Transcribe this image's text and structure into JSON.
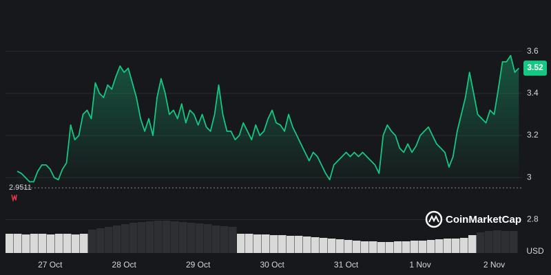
{
  "chart_data": {
    "type": "line",
    "color": "#16c784",
    "categories": [
      null,
      null,
      null,
      null,
      null,
      null,
      null,
      null,
      "27 Oct",
      null,
      null,
      null,
      null,
      null,
      null,
      null,
      null,
      null,
      null,
      null,
      null,
      null,
      null,
      null,
      null,
      null,
      "28 Oct",
      null,
      null,
      null,
      null,
      null,
      null,
      null,
      null,
      null,
      null,
      null,
      null,
      null,
      null,
      null,
      null,
      null,
      "29 Oct",
      null,
      null,
      null,
      null,
      null,
      null,
      null,
      null,
      null,
      null,
      null,
      null,
      null,
      null,
      null,
      null,
      null,
      "30 Oct",
      null,
      null,
      null,
      null,
      null,
      null,
      null,
      null,
      null,
      null,
      null,
      null,
      null,
      null,
      null,
      null,
      null,
      "31 Oct",
      null,
      null,
      null,
      null,
      null,
      null,
      null,
      null,
      null,
      null,
      null,
      null,
      null,
      null,
      null,
      null,
      null,
      "1 Nov",
      null,
      null,
      null,
      null,
      null,
      null,
      null,
      null,
      null,
      null,
      null,
      null,
      null,
      null,
      null,
      null,
      null,
      "2 Nov",
      null,
      null,
      null,
      null,
      null,
      null
    ],
    "series": [
      {
        "values": [
          3.03,
          3.02,
          3.0,
          2.98,
          2.98,
          3.03,
          3.06,
          3.06,
          3.04,
          3.0,
          2.99,
          3.04,
          3.07,
          3.25,
          3.18,
          3.2,
          3.3,
          3.32,
          3.28,
          3.45,
          3.4,
          3.38,
          3.44,
          3.42,
          3.48,
          3.53,
          3.5,
          3.52,
          3.45,
          3.38,
          3.28,
          3.22,
          3.28,
          3.2,
          3.38,
          3.47,
          3.4,
          3.3,
          3.32,
          3.28,
          3.35,
          3.26,
          3.32,
          3.3,
          3.25,
          3.3,
          3.24,
          3.22,
          3.3,
          3.44,
          3.3,
          3.22,
          3.22,
          3.18,
          3.2,
          3.26,
          3.22,
          3.18,
          3.25,
          3.2,
          3.22,
          3.28,
          3.32,
          3.26,
          3.25,
          3.22,
          3.3,
          3.24,
          3.2,
          3.16,
          3.12,
          3.08,
          3.12,
          3.1,
          3.06,
          3.02,
          2.99,
          3.06,
          3.08,
          3.1,
          3.12,
          3.1,
          3.12,
          3.1,
          3.12,
          3.1,
          3.08,
          3.06,
          3.02,
          3.2,
          3.25,
          3.22,
          3.2,
          3.14,
          3.12,
          3.16,
          3.12,
          3.15,
          3.2,
          3.22,
          3.24,
          3.2,
          3.16,
          3.14,
          3.12,
          3.05,
          3.1,
          3.22,
          3.3,
          3.38,
          3.5,
          3.4,
          3.3,
          3.28,
          3.26,
          3.32,
          3.3,
          3.42,
          3.55,
          3.55,
          3.58,
          3.5,
          3.52
        ]
      }
    ],
    "volume": [
      {
        "color": "#d9d9d9",
        "values": [
          28,
          28,
          27,
          28,
          28,
          27,
          28,
          28,
          27,
          28,
          null,
          null,
          null,
          null,
          null,
          null,
          null,
          null,
          null,
          null,
          null,
          null,
          null,
          null,
          null,
          null,
          null,
          null,
          28,
          28,
          27,
          27,
          26,
          26,
          25,
          25,
          24,
          23,
          22,
          21,
          20,
          19,
          18,
          17,
          17,
          16,
          16,
          17,
          17,
          18,
          18,
          19,
          20,
          21,
          21,
          22,
          26,
          null,
          null,
          null,
          null,
          null
        ]
      },
      {
        "color": "#2e2f33",
        "values": [
          null,
          null,
          null,
          null,
          null,
          null,
          null,
          null,
          null,
          null,
          34,
          36,
          38,
          40,
          42,
          44,
          45,
          46,
          47,
          47,
          46,
          45,
          44,
          43,
          42,
          40,
          39,
          38,
          null,
          null,
          null,
          null,
          null,
          null,
          null,
          null,
          null,
          null,
          null,
          null,
          null,
          null,
          null,
          null,
          null,
          null,
          null,
          null,
          null,
          null,
          null,
          null,
          null,
          null,
          null,
          null,
          null,
          30,
          32,
          33,
          32,
          32
        ]
      }
    ],
    "reference_value": 2.9511,
    "ylim": [
      2.694,
      3.726
    ],
    "yticks": [
      2.8,
      3.0,
      3.2,
      3.4,
      3.6
    ],
    "grid": true,
    "watermark": "CoinMarketCap",
    "currency": "USD"
  }
}
